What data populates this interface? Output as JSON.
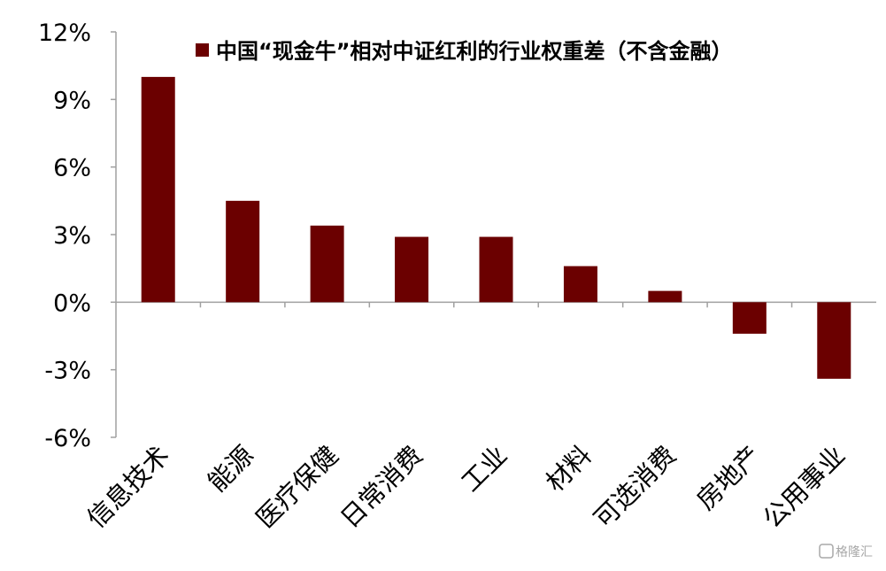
{
  "chart_data": {
    "type": "bar",
    "legend": "中国“现金牛”相对中证红利的行业权重差（不含金融）",
    "categories": [
      "信息技术",
      "能源",
      "医疗保健",
      "日常消费",
      "工业",
      "材料",
      "可选消费",
      "房地产",
      "公用事业"
    ],
    "series": [
      {
        "name": "中国“现金牛”相对中证红利的行业权重差（不含金融）",
        "values": [
          10.0,
          4.5,
          3.4,
          2.9,
          2.9,
          1.6,
          0.5,
          -1.4,
          -3.4
        ]
      }
    ],
    "ylim": [
      -6,
      12
    ],
    "yticks": [
      "12%",
      "9%",
      "6%",
      "3%",
      "0%",
      "-3%",
      "-6%"
    ],
    "grid": false,
    "legend_position": "top-right",
    "bar_color": "#6b0000",
    "axis_color": "#a0a0a0"
  },
  "watermark": {
    "text": "格隆汇"
  }
}
